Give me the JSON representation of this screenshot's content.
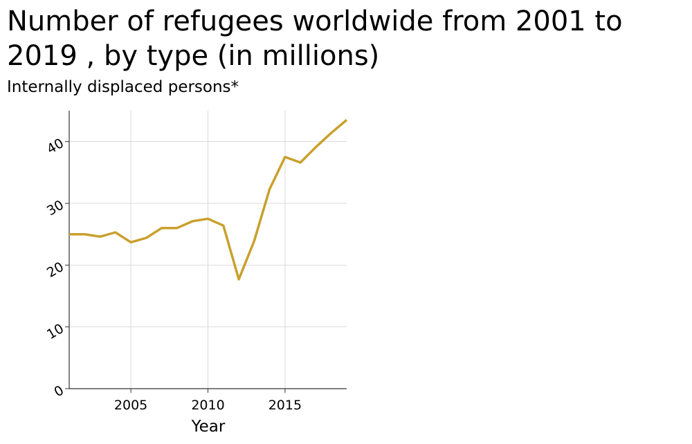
{
  "chart_data": {
    "type": "line",
    "title": "Number of refugees worldwide from 2001 to 2019 , by type (in millions)",
    "subtitle": "Internally displaced persons*",
    "xlabel": "Year",
    "ylabel": "",
    "xlim": [
      2001,
      2019
    ],
    "ylim": [
      0,
      45
    ],
    "x_ticks": [
      2005,
      2010,
      2015
    ],
    "y_ticks": [
      0,
      10,
      20,
      30,
      40
    ],
    "grid": true,
    "series": [
      {
        "color": "#c9a02c",
        "x": [
          2001,
          2002,
          2003,
          2004,
          2005,
          2006,
          2007,
          2008,
          2009,
          2010,
          2011,
          2012,
          2013,
          2014,
          2015,
          2016,
          2017,
          2018,
          2019
        ],
        "values": [
          25.0,
          25.0,
          24.6,
          25.3,
          23.7,
          24.4,
          26.0,
          26.0,
          27.1,
          27.5,
          26.4,
          17.7,
          23.9,
          32.3,
          37.5,
          36.6,
          39.1,
          41.4,
          43.5
        ]
      }
    ]
  }
}
